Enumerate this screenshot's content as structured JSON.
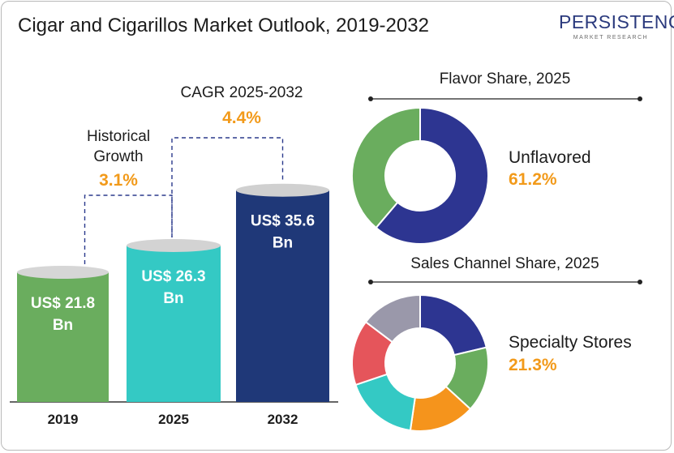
{
  "title": "Cigar and Cigarillos Market Outlook, 2019-2032",
  "logo": {
    "word": "PERSISTENCE",
    "sub": "MARKET RESEARCH"
  },
  "chart_data": [
    {
      "type": "bar",
      "title": "",
      "categories": [
        "2019",
        "2025",
        "2032"
      ],
      "values": [
        21.8,
        26.3,
        35.6
      ],
      "value_labels": [
        [
          "US$ 21.8",
          "Bn"
        ],
        [
          "US$ 26.3",
          "Bn"
        ],
        [
          "US$ 35.6",
          "Bn"
        ]
      ],
      "colors": [
        "#6aad5e",
        "#34c9c4",
        "#1f3878"
      ],
      "annotations": {
        "historical": {
          "label": [
            "Historical",
            "Growth"
          ],
          "value": "3.1%"
        },
        "cagr": {
          "label": "CAGR 2025-2032",
          "value": "4.4%"
        }
      }
    },
    {
      "type": "pie",
      "title": "Flavor Share, 2025",
      "slices": [
        {
          "label": "Unflavored",
          "value": 61.2,
          "color": "#2d3591"
        },
        {
          "label": "",
          "value": 38.8,
          "color": "#6aad5e"
        }
      ],
      "callout": {
        "label": "Unflavored",
        "value": "61.2%"
      }
    },
    {
      "type": "pie",
      "title": "Sales Channel Share, 2025",
      "slices": [
        {
          "label": "Specialty Stores",
          "value": 21.3,
          "color": "#2d3591"
        },
        {
          "label": "",
          "value": 15.5,
          "color": "#6aad5e"
        },
        {
          "label": "",
          "value": 15.5,
          "color": "#f5941c"
        },
        {
          "label": "",
          "value": 17.5,
          "color": "#34c9c4"
        },
        {
          "label": "",
          "value": 15.5,
          "color": "#e5555b"
        },
        {
          "label": "",
          "value": 14.7,
          "color": "#9a98aa"
        }
      ],
      "callout": {
        "label": "Specialty Stores",
        "value": "21.3%"
      }
    }
  ]
}
